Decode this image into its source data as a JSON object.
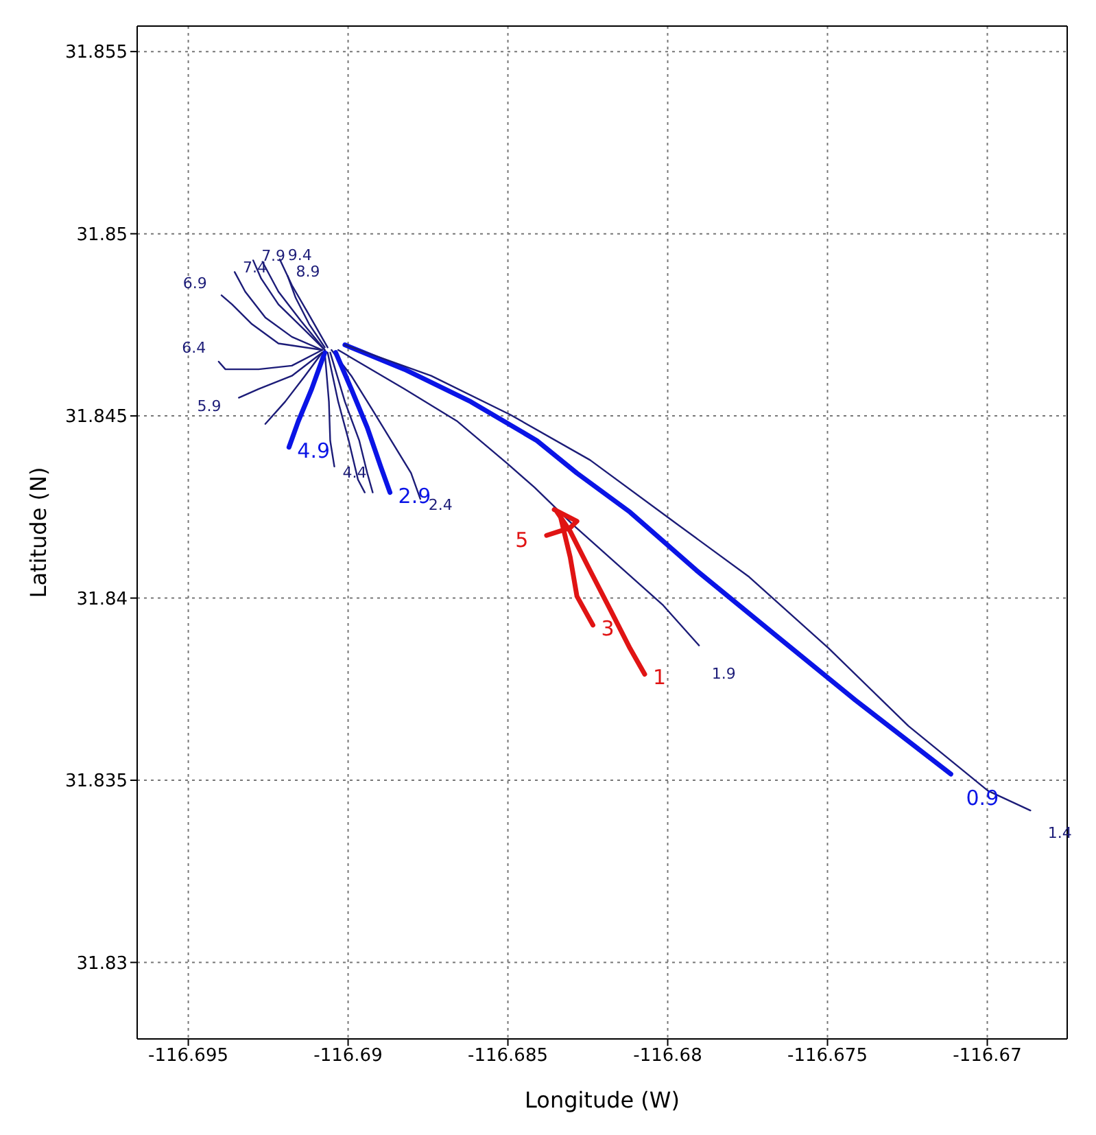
{
  "chart_data": {
    "type": "line",
    "xlabel": "Longitude (W)",
    "ylabel": "Latitude (N)",
    "xlim": [
      -116.6966,
      -116.6675
    ],
    "ylim": [
      31.8279,
      31.8557
    ],
    "xticks": [
      -116.695,
      -116.69,
      -116.685,
      -116.68,
      -116.675,
      -116.67
    ],
    "yticks": [
      31.83,
      31.835,
      31.84,
      31.845,
      31.85,
      31.855
    ],
    "grid": true,
    "legend": false,
    "marker": "none",
    "line_style": "solid",
    "series": [
      {
        "name": "0.9",
        "color": "#0a14e6",
        "x": [
          -116.6901,
          -116.68824,
          -116.68616,
          -116.68409,
          -116.68284,
          -116.68118,
          -116.6791,
          -116.67662,
          -116.67413,
          -116.67114
        ],
        "values": [
          31.84695,
          31.84628,
          31.84539,
          31.84432,
          31.84343,
          31.84236,
          31.84076,
          31.83898,
          31.8372,
          31.83517
        ]
      },
      {
        "name": "1.4",
        "color": "#1c1c78",
        "x": [
          -116.6901,
          -116.6874,
          -116.68492,
          -116.68243,
          -116.67994,
          -116.67745,
          -116.67496,
          -116.67247,
          -116.66998,
          -116.66865
        ],
        "values": [
          31.84695,
          31.8461,
          31.84503,
          31.84379,
          31.84218,
          31.84058,
          31.83862,
          31.83649,
          31.83471,
          31.83417
        ]
      },
      {
        "name": "1.9",
        "color": "#1c1c78",
        "x": [
          -116.69031,
          -116.68824,
          -116.68658,
          -116.68504,
          -116.68417,
          -116.68296,
          -116.68014,
          -116.67902
        ],
        "values": [
          31.84681,
          31.84574,
          31.84485,
          31.84371,
          31.84304,
          31.84201,
          31.8398,
          31.8387
        ]
      },
      {
        "name": "2.4",
        "color": "#1c1c78",
        "x": [
          -116.69052,
          -116.6899,
          -116.68927,
          -116.68865,
          -116.68803,
          -116.68774
        ],
        "values": [
          31.84681,
          31.8461,
          31.84521,
          31.84432,
          31.84343,
          31.84272
        ]
      },
      {
        "name": "2.9",
        "color": "#0a14e6",
        "x": [
          -116.69039,
          -116.6899,
          -116.6894,
          -116.68898,
          -116.68869
        ],
        "values": [
          31.84674,
          31.84574,
          31.84468,
          31.84361,
          31.8429
        ]
      },
      {
        "color": "#1c1c78",
        "x": [
          -116.69056,
          -116.6901,
          -116.68965,
          -116.6894,
          -116.68923
        ],
        "values": [
          31.84674,
          31.84539,
          31.84432,
          31.84343,
          31.8429
        ]
      },
      {
        "color": "#1c1c78",
        "x": [
          -116.69064,
          -116.69031,
          -116.68998,
          -116.68969,
          -116.68948
        ],
        "values": [
          31.84674,
          31.84539,
          31.84432,
          31.84325,
          31.8429
        ]
      },
      {
        "name": "4.4",
        "color": "#1c1c78",
        "x": [
          -116.69073,
          -116.6906,
          -116.69056,
          -116.69043
        ],
        "values": [
          31.84674,
          31.84539,
          31.84432,
          31.84361
        ]
      },
      {
        "name": "4.9",
        "color": "#0a14e6",
        "x": [
          -116.69073,
          -116.69114,
          -116.69156,
          -116.69185
        ],
        "values": [
          31.84674,
          31.84574,
          31.84485,
          31.84414
        ]
      },
      {
        "color": "#1c1c78",
        "x": [
          -116.69081,
          -116.69135,
          -116.69197,
          -116.69259
        ],
        "values": [
          31.84674,
          31.8461,
          31.84539,
          31.84478
        ]
      },
      {
        "name": "5.9",
        "color": "#1c1c78",
        "x": [
          -116.69081,
          -116.69176,
          -116.6928,
          -116.69342
        ],
        "values": [
          31.84674,
          31.8461,
          31.84574,
          31.8455
        ]
      },
      {
        "name": "6.4",
        "color": "#1c1c78",
        "x": [
          -116.69081,
          -116.69176,
          -116.6928,
          -116.69384,
          -116.69405
        ],
        "values": [
          31.84681,
          31.84638,
          31.84628,
          31.84628,
          31.84649
        ]
      },
      {
        "name": "6.9",
        "color": "#1c1c78",
        "x": [
          -116.69081,
          -116.69218,
          -116.69301,
          -116.69363,
          -116.69396
        ],
        "values": [
          31.84681,
          31.84699,
          31.84752,
          31.84806,
          31.84831
        ]
      },
      {
        "name": "7.4",
        "color": "#1c1c78",
        "x": [
          -116.69081,
          -116.69176,
          -116.69259,
          -116.69322,
          -116.69355
        ],
        "values": [
          31.84681,
          31.84717,
          31.8477,
          31.84841,
          31.84895
        ]
      },
      {
        "name": "7.9",
        "color": "#1c1c78",
        "x": [
          -116.69073,
          -116.69135,
          -116.69218,
          -116.69272,
          -116.69297
        ],
        "values": [
          31.84681,
          31.84735,
          31.84806,
          31.84877,
          31.84927
        ]
      },
      {
        "color": "#1c1c78",
        "x": [
          -116.69073,
          -116.69147,
          -116.69218,
          -116.69268
        ],
        "values": [
          31.84681,
          31.8476,
          31.84841,
          31.84923
        ]
      },
      {
        "name": "8.9",
        "color": "#1c1c78",
        "x": [
          -116.69073,
          -116.69122,
          -116.69164,
          -116.69189
        ],
        "values": [
          31.84688,
          31.84752,
          31.84824,
          31.84884
        ]
      },
      {
        "name": "9.4",
        "color": "#1c1c78",
        "x": [
          -116.69064,
          -116.6912,
          -116.69176,
          -116.69214
        ],
        "values": [
          31.84688,
          31.84774,
          31.84859,
          31.8493
        ]
      },
      {
        "name": "1",
        "color": "#e01414",
        "x": [
          -116.68346,
          -116.68305,
          -116.68243,
          -116.6818,
          -116.68118,
          -116.68072
        ],
        "values": [
          31.84236,
          31.84183,
          31.84076,
          31.83969,
          31.83862,
          31.83791
        ]
      },
      {
        "name": "3",
        "color": "#e01414",
        "x": [
          -116.68334,
          -116.68305,
          -116.68284,
          -116.68234
        ],
        "values": [
          31.84218,
          31.84112,
          31.84005,
          31.83926
        ]
      },
      {
        "name": "5",
        "color": "#e01414",
        "x": [
          -116.68355,
          -116.68284,
          -116.68305,
          -116.68379
        ],
        "values": [
          31.84243,
          31.84211,
          31.84193,
          31.84172
        ]
      }
    ]
  }
}
